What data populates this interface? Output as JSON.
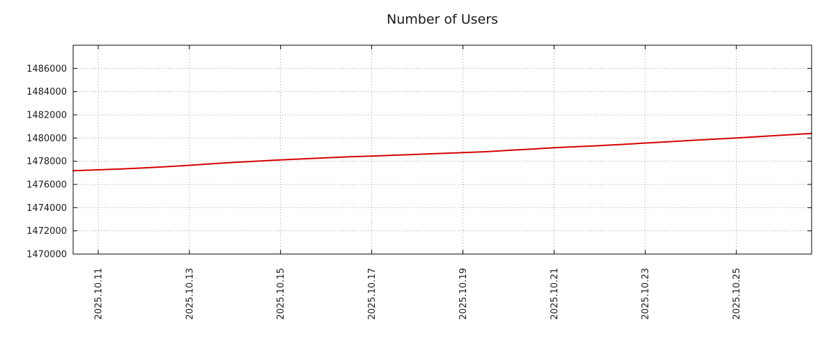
{
  "chart_data": {
    "type": "line",
    "title": "Number of Users",
    "xlabel": "",
    "ylabel": "",
    "xlim": [
      10.45,
      26.65
    ],
    "ylim": [
      1470000,
      1488000
    ],
    "grid": "dotted",
    "legend": "none",
    "xtick_values": [
      11,
      13,
      15,
      17,
      19,
      21,
      23,
      25
    ],
    "xtick_labels": [
      "2025.10.11",
      "2025.10.13",
      "2025.10.15",
      "2025.10.17",
      "2025.10.19",
      "2025.10.21",
      "2025.10.23",
      "2025.10.25"
    ],
    "ytick_values": [
      1470000,
      1472000,
      1474000,
      1476000,
      1478000,
      1480000,
      1482000,
      1484000,
      1486000
    ],
    "ytick_labels": [
      "1470000",
      "1472000",
      "1474000",
      "1476000",
      "1478000",
      "1480000",
      "1482000",
      "1484000",
      "1486000"
    ],
    "series": [
      {
        "name": "users",
        "color": "#d40000",
        "x": [
          10.45,
          11,
          11.5,
          12,
          12.5,
          13,
          13.5,
          14,
          14.5,
          15,
          15.5,
          16,
          16.5,
          17,
          17.5,
          18,
          18.5,
          19,
          19.5,
          20,
          20.5,
          21,
          21.5,
          22,
          22.5,
          23,
          23.5,
          24,
          24.5,
          25,
          25.5,
          26,
          26.65
        ],
        "y": [
          1477180,
          1477260,
          1477330,
          1477420,
          1477530,
          1477650,
          1477780,
          1477900,
          1478010,
          1478110,
          1478200,
          1478290,
          1478380,
          1478450,
          1478520,
          1478590,
          1478670,
          1478740,
          1478820,
          1478940,
          1479050,
          1479160,
          1479250,
          1479350,
          1479450,
          1479570,
          1479680,
          1479790,
          1479900,
          1480010,
          1480120,
          1480240,
          1480400
        ]
      }
    ],
    "colors": {
      "line": "#d40000",
      "grid": "#999999",
      "axis": "#000000",
      "background": "#ffffff"
    }
  }
}
